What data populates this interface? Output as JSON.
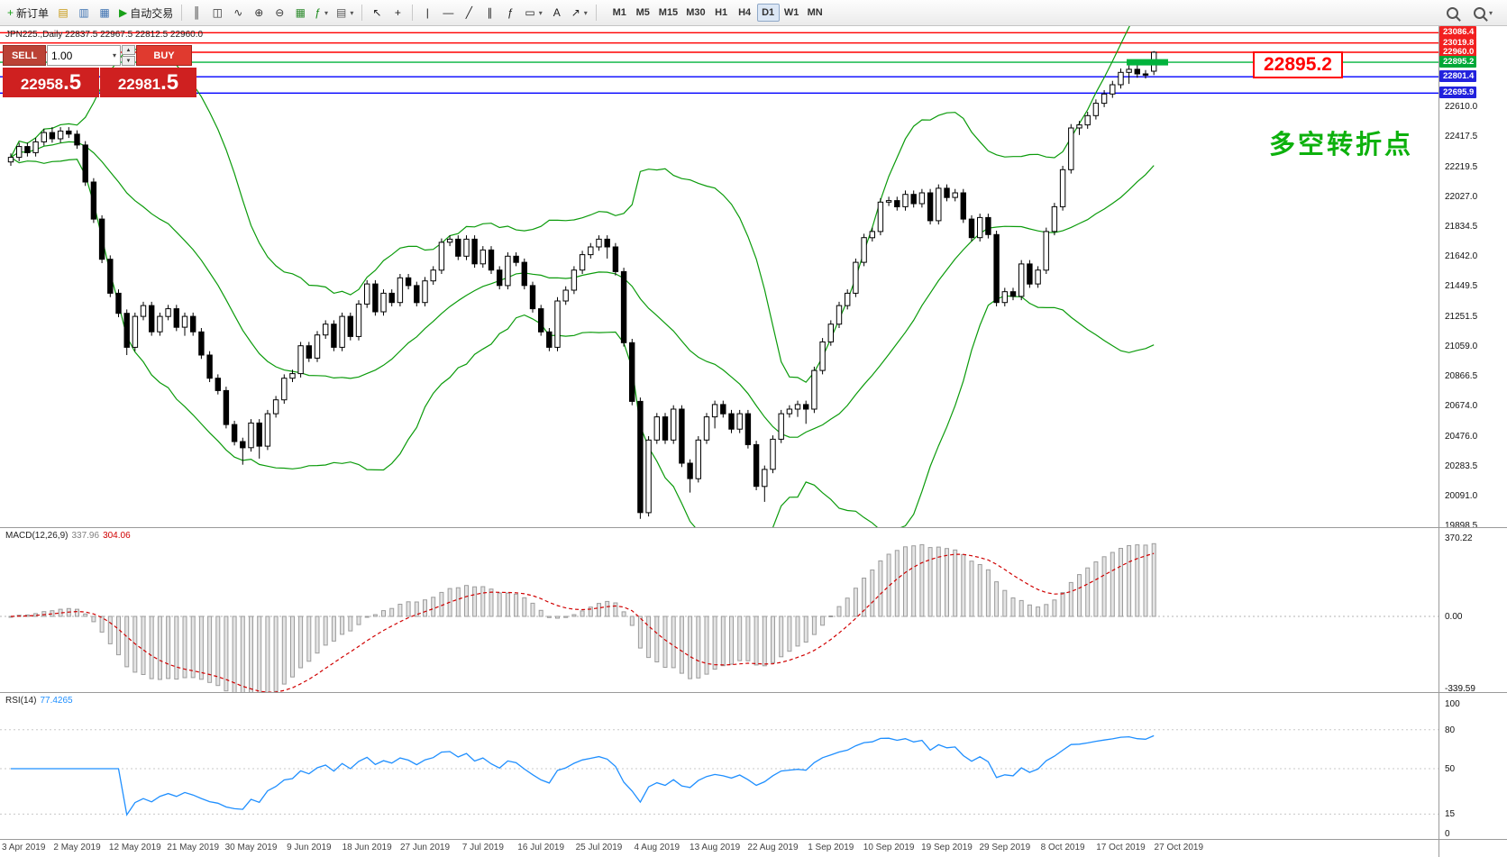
{
  "toolbar": {
    "left_buttons": [
      {
        "name": "new-order-button",
        "label": "新订单",
        "glyph": "+",
        "glyph_color": "#18a018"
      },
      {
        "name": "chart-profile-button",
        "glyph": "▤",
        "glyph_color": "#c79810"
      },
      {
        "name": "market-watch-button",
        "glyph": "▥",
        "glyph_color": "#3a6fb0"
      },
      {
        "name": "navigator-button",
        "glyph": "▦",
        "glyph_color": "#3a6fb0"
      },
      {
        "name": "auto-trading-button",
        "label": "自动交易",
        "glyph": "▶",
        "glyph_color": "#18a018"
      },
      {
        "sep": true
      },
      {
        "name": "bar-chart-type-button",
        "glyph": "║",
        "glyph_color": "#333333"
      },
      {
        "name": "candlestick-chart-type-button",
        "glyph": "◫",
        "glyph_color": "#333333"
      },
      {
        "name": "line-chart-type-button",
        "glyph": "∿",
        "glyph_color": "#333333"
      },
      {
        "name": "zoom-in-button",
        "glyph": "⊕",
        "glyph_color": "#333333"
      },
      {
        "name": "zoom-out-button",
        "glyph": "⊖",
        "glyph_color": "#333333"
      },
      {
        "name": "grid-button",
        "glyph": "▦",
        "glyph_color": "#2e8b2e"
      },
      {
        "name": "indicators-button",
        "glyph": "ƒ",
        "glyph_color": "#168716",
        "dropdown": true
      },
      {
        "name": "templates-button",
        "glyph": "▤",
        "glyph_color": "#555555",
        "dropdown": true
      },
      {
        "sep": true
      },
      {
        "name": "cursor-button",
        "glyph": "↖",
        "glyph_color": "#222222"
      },
      {
        "name": "crosshair-button",
        "glyph": "+",
        "glyph_color": "#222222"
      },
      {
        "sep": true
      },
      {
        "name": "vertical-line-button",
        "glyph": "|",
        "glyph_color": "#222222"
      },
      {
        "name": "horizontal-line-button",
        "glyph": "—",
        "glyph_color": "#222222"
      },
      {
        "name": "trendline-button",
        "glyph": "╱",
        "glyph_color": "#222222"
      },
      {
        "name": "channel-button",
        "glyph": "∥",
        "glyph_color": "#222222"
      },
      {
        "name": "fibonacci-button",
        "glyph": "ƒ",
        "glyph_color": "#222222"
      },
      {
        "name": "shapes-button",
        "glyph": "▭",
        "glyph_color": "#222222",
        "dropdown": true
      },
      {
        "name": "text-button",
        "glyph": "A",
        "glyph_color": "#222222"
      },
      {
        "name": "arrows-button",
        "glyph": "↗",
        "glyph_color": "#222222",
        "dropdown": true
      },
      {
        "sep": true
      }
    ],
    "timeframes": [
      "M1",
      "M5",
      "M15",
      "M30",
      "H1",
      "H4",
      "D1",
      "W1",
      "MN"
    ],
    "active_timeframe": "D1"
  },
  "icons": {
    "up": "▲",
    "down": "▼",
    "dropdown": "▾"
  },
  "order_panel": {
    "sell_label": "SELL",
    "buy_label": "BUY",
    "volume": "1.00",
    "sell_price": "22958",
    "sell_price_frac": ".5",
    "buy_price": "22981",
    "buy_price_frac": ".5",
    "colors": {
      "sell_button": "#bb4236",
      "buy_button": "#e03a2f",
      "price_box": "#cf2020"
    }
  },
  "chart": {
    "title": "JPN225.,Daily 22837.5 22967.5 22812.5 22960.0",
    "annotation_price": "22895.2",
    "annotation_text": "多空转折点",
    "colors": {
      "bollinger": "#0b9b0b",
      "bull_candle": "#ffffff",
      "bear_candle": "#000000",
      "annotation_green": "#0db10d",
      "highlight": "#00b33c",
      "rsi_line": "#1f8fff",
      "macd_signal": "#d00000",
      "macd_hist_fill": "#e4e4e4",
      "macd_hist_stroke": "#9c9c9c"
    },
    "hlines": [
      {
        "price": 23086.4,
        "label": "23086.4",
        "color": "#ff0000",
        "tag_bg": "#f22020"
      },
      {
        "price": 23019.8,
        "label": "23019.8",
        "color": "#ff0000",
        "tag_bg": "#f22020"
      },
      {
        "price": 22960.0,
        "label": "22960.0",
        "color": "#ff0000",
        "tag_bg": "#f22020"
      },
      {
        "price": 22895.2,
        "label": "22895.2",
        "color": "#00b33c",
        "tag_bg": "#00a838"
      },
      {
        "price": 22801.4,
        "label": "22801.4",
        "color": "#0000ff",
        "tag_bg": "#2222dd"
      },
      {
        "price": 22695.9,
        "label": "22695.9",
        "color": "#0000ff",
        "tag_bg": "#2222dd"
      }
    ],
    "level_highlight": {
      "price": 22895.2
    },
    "scale_labels": [
      "22610.0",
      "22417.5",
      "22219.5",
      "22027.0",
      "21834.5",
      "21642.0",
      "21449.5",
      "21251.5",
      "21059.0",
      "20866.5",
      "20674.0",
      "20476.0",
      "20283.5",
      "20091.0",
      "19898.5"
    ],
    "candles": [
      [
        22250,
        22305,
        22225,
        22280
      ],
      [
        22280,
        22375,
        22255,
        22350
      ],
      [
        22350,
        22375,
        22285,
        22310
      ],
      [
        22310,
        22405,
        22285,
        22380
      ],
      [
        22380,
        22465,
        22355,
        22440
      ],
      [
        22440,
        22475,
        22375,
        22400
      ],
      [
        22400,
        22475,
        22375,
        22450
      ],
      [
        22450,
        22475,
        22405,
        22430
      ],
      [
        22430,
        22455,
        22335,
        22360
      ],
      [
        22360,
        22385,
        22095,
        22120
      ],
      [
        22120,
        22145,
        21855,
        21880
      ],
      [
        21880,
        21905,
        21595,
        21620
      ],
      [
        21620,
        21645,
        21375,
        21400
      ],
      [
        21400,
        21425,
        21245,
        21270
      ],
      [
        21270,
        21295,
        21000,
        21050
      ],
      [
        21050,
        21275,
        21025,
        21250
      ],
      [
        21250,
        21345,
        21225,
        21320
      ],
      [
        21320,
        21345,
        21125,
        21150
      ],
      [
        21150,
        21275,
        21125,
        21250
      ],
      [
        21250,
        21325,
        21225,
        21300
      ],
      [
        21300,
        21325,
        21155,
        21180
      ],
      [
        21180,
        21275,
        21125,
        21250
      ],
      [
        21250,
        21275,
        21125,
        21150
      ],
      [
        21150,
        21175,
        20975,
        21000
      ],
      [
        21000,
        21025,
        20825,
        20850
      ],
      [
        20850,
        20875,
        20745,
        20770
      ],
      [
        20770,
        20795,
        20525,
        20550
      ],
      [
        20550,
        20575,
        20415,
        20440
      ],
      [
        20440,
        20465,
        20290,
        20400
      ],
      [
        20400,
        20585,
        20375,
        20560
      ],
      [
        20560,
        20585,
        20330,
        20410
      ],
      [
        20410,
        20645,
        20385,
        20620
      ],
      [
        20620,
        20735,
        20595,
        20710
      ],
      [
        20710,
        20875,
        20685,
        20850
      ],
      [
        20850,
        20905,
        20825,
        20880
      ],
      [
        20880,
        21085,
        20855,
        21060
      ],
      [
        21060,
        21085,
        20955,
        20980
      ],
      [
        20980,
        21155,
        20955,
        21130
      ],
      [
        21130,
        21225,
        21105,
        21200
      ],
      [
        21200,
        21225,
        21025,
        21050
      ],
      [
        21050,
        21275,
        21025,
        21250
      ],
      [
        21250,
        21275,
        21095,
        21120
      ],
      [
        21120,
        21355,
        21095,
        21330
      ],
      [
        21330,
        21485,
        21305,
        21460
      ],
      [
        21460,
        21485,
        21255,
        21280
      ],
      [
        21280,
        21425,
        21255,
        21400
      ],
      [
        21400,
        21425,
        21315,
        21340
      ],
      [
        21340,
        21525,
        21315,
        21500
      ],
      [
        21500,
        21525,
        21425,
        21450
      ],
      [
        21450,
        21475,
        21315,
        21340
      ],
      [
        21340,
        21505,
        21315,
        21480
      ],
      [
        21480,
        21575,
        21455,
        21550
      ],
      [
        21550,
        21755,
        21525,
        21730
      ],
      [
        21730,
        21775,
        21705,
        21750
      ],
      [
        21750,
        21775,
        21615,
        21640
      ],
      [
        21640,
        21775,
        21615,
        21750
      ],
      [
        21750,
        21775,
        21565,
        21590
      ],
      [
        21590,
        21705,
        21565,
        21680
      ],
      [
        21680,
        21705,
        21525,
        21550
      ],
      [
        21550,
        21575,
        21425,
        21450
      ],
      [
        21450,
        21665,
        21425,
        21640
      ],
      [
        21640,
        21665,
        21575,
        21600
      ],
      [
        21600,
        21625,
        21425,
        21450
      ],
      [
        21450,
        21475,
        21275,
        21300
      ],
      [
        21300,
        21325,
        21125,
        21150
      ],
      [
        21150,
        21175,
        21025,
        21050
      ],
      [
        21050,
        21375,
        21025,
        21350
      ],
      [
        21350,
        21445,
        21325,
        21420
      ],
      [
        21420,
        21575,
        21395,
        21550
      ],
      [
        21550,
        21675,
        21525,
        21650
      ],
      [
        21650,
        21725,
        21625,
        21700
      ],
      [
        21700,
        21775,
        21675,
        21750
      ],
      [
        21750,
        21775,
        21625,
        21700
      ],
      [
        21700,
        21725,
        21515,
        21540
      ],
      [
        21540,
        21565,
        21055,
        21080
      ],
      [
        21080,
        21105,
        20675,
        20700
      ],
      [
        20700,
        20725,
        19940,
        19980
      ],
      [
        19980,
        20475,
        19955,
        20450
      ],
      [
        20450,
        20625,
        20425,
        20600
      ],
      [
        20600,
        20625,
        20425,
        20450
      ],
      [
        20450,
        20675,
        20425,
        20650
      ],
      [
        20650,
        20675,
        20275,
        20300
      ],
      [
        20300,
        20325,
        20110,
        20200
      ],
      [
        20200,
        20475,
        20175,
        20450
      ],
      [
        20450,
        20625,
        20425,
        20600
      ],
      [
        20600,
        20705,
        20525,
        20680
      ],
      [
        20680,
        20705,
        20595,
        20620
      ],
      [
        20620,
        20645,
        20495,
        20520
      ],
      [
        20520,
        20645,
        20495,
        20620
      ],
      [
        20620,
        20645,
        20395,
        20420
      ],
      [
        20420,
        20445,
        20125,
        20150
      ],
      [
        20150,
        20285,
        20050,
        20260
      ],
      [
        20260,
        20480,
        20235,
        20455
      ],
      [
        20455,
        20645,
        20430,
        20620
      ],
      [
        20620,
        20675,
        20595,
        20650
      ],
      [
        20650,
        20705,
        20600,
        20680
      ],
      [
        20680,
        20705,
        20555,
        20650
      ],
      [
        20650,
        20925,
        20625,
        20900
      ],
      [
        20900,
        21110,
        20875,
        21085
      ],
      [
        21085,
        21225,
        21060,
        21200
      ],
      [
        21200,
        21345,
        21175,
        21320
      ],
      [
        21320,
        21425,
        21295,
        21400
      ],
      [
        21400,
        21625,
        21375,
        21600
      ],
      [
        21600,
        21785,
        21575,
        21760
      ],
      [
        21760,
        21825,
        21735,
        21800
      ],
      [
        21800,
        22015,
        21775,
        21990
      ],
      [
        21990,
        22025,
        21965,
        22000
      ],
      [
        22000,
        22025,
        21935,
        21960
      ],
      [
        21960,
        22065,
        21935,
        22040
      ],
      [
        22040,
        22065,
        21955,
        21980
      ],
      [
        21980,
        22075,
        21955,
        22050
      ],
      [
        22050,
        22075,
        21845,
        21870
      ],
      [
        21870,
        22105,
        21845,
        22080
      ],
      [
        22080,
        22105,
        21995,
        22020
      ],
      [
        22020,
        22075,
        21995,
        22050
      ],
      [
        22050,
        22075,
        21855,
        21880
      ],
      [
        21880,
        21905,
        21735,
        21760
      ],
      [
        21760,
        21915,
        21735,
        21890
      ],
      [
        21890,
        21915,
        21755,
        21780
      ],
      [
        21780,
        21805,
        21315,
        21340
      ],
      [
        21340,
        21435,
        21315,
        21410
      ],
      [
        21410,
        21435,
        21355,
        21380
      ],
      [
        21380,
        21615,
        21355,
        21590
      ],
      [
        21590,
        21615,
        21435,
        21460
      ],
      [
        21460,
        21575,
        21435,
        21550
      ],
      [
        21550,
        21825,
        21525,
        21800
      ],
      [
        21800,
        21985,
        21775,
        21960
      ],
      [
        21960,
        22225,
        21935,
        22200
      ],
      [
        22200,
        22495,
        22175,
        22470
      ],
      [
        22470,
        22515,
        22425,
        22490
      ],
      [
        22490,
        22575,
        22465,
        22550
      ],
      [
        22550,
        22655,
        22525,
        22630
      ],
      [
        22630,
        22715,
        22605,
        22690
      ],
      [
        22690,
        22775,
        22665,
        22750
      ],
      [
        22750,
        22855,
        22725,
        22830
      ],
      [
        22830,
        22875,
        22755,
        22850
      ],
      [
        22850,
        22905,
        22795,
        22820
      ],
      [
        22820,
        22845,
        22790,
        22812
      ],
      [
        22837.5,
        22967.5,
        22812.5,
        22960.0
      ]
    ]
  },
  "macd": {
    "label": "MACD(12,26,9)",
    "main_value": "337.96",
    "signal_value": "304.06",
    "scale": [
      "370.22",
      "0.00",
      "-339.59"
    ]
  },
  "rsi": {
    "label": "RSI(14)",
    "value": "77.4265",
    "scale": [
      "100",
      "80",
      "50",
      "15",
      "0"
    ],
    "levels": [
      80,
      50,
      15
    ]
  },
  "time_axis": {
    "labels": [
      "3 Apr 2019",
      "2 May 2019",
      "12 May 2019",
      "21 May 2019",
      "30 May 2019",
      "9 Jun 2019",
      "18 Jun 2019",
      "27 Jun 2019",
      "7 Jul 2019",
      "16 Jul 2019",
      "25 Jul 2019",
      "4 Aug 2019",
      "13 Aug 2019",
      "22 Aug 2019",
      "1 Sep 2019",
      "10 Sep 2019",
      "19 Sep 2019",
      "29 Sep 2019",
      "8 Oct 2019",
      "17 Oct 2019",
      "27 Oct 2019"
    ],
    "indices": [
      1,
      8,
      15,
      22,
      29,
      36,
      43,
      50,
      57,
      64,
      71,
      78,
      85,
      92,
      99,
      106,
      113,
      120,
      127,
      134,
      141
    ]
  }
}
